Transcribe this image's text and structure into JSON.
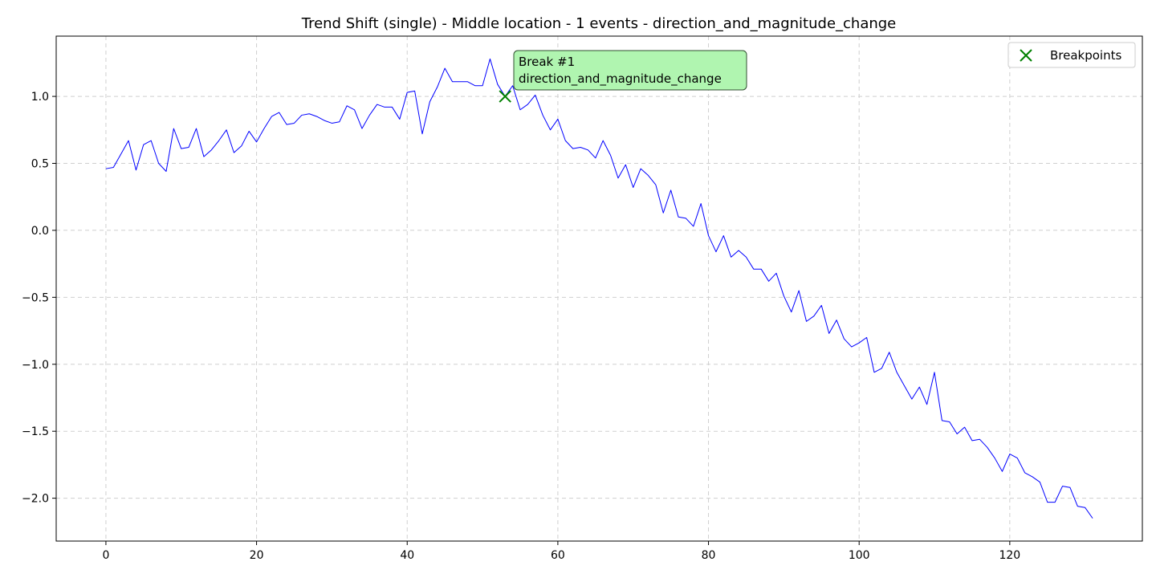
{
  "chart_data": {
    "type": "line",
    "title": "Trend Shift (single) - Middle location - 1 events - direction_and_magnitude_change",
    "xlabel": "",
    "ylabel": "",
    "xlim": [
      -6.6,
      137.6
    ],
    "ylim": [
      -2.32,
      1.45
    ],
    "xticks": [
      0,
      20,
      40,
      60,
      80,
      100,
      120
    ],
    "xtick_labels": [
      "0",
      "20",
      "40",
      "60",
      "80",
      "100",
      "120"
    ],
    "yticks": [
      1.0,
      0.5,
      0.0,
      -0.5,
      -1.0,
      -1.5,
      -2.0
    ],
    "ytick_labels": [
      "1.0",
      "0.5",
      "0.0",
      "−0.5",
      "−1.0",
      "−1.5",
      "−2.0"
    ],
    "grid": true,
    "legend_position": "top-right",
    "series": [
      {
        "color": "#0000ff",
        "x": [
          0,
          1,
          2,
          3,
          4,
          5,
          6,
          7,
          8,
          9,
          10,
          11,
          12,
          13,
          14,
          15,
          16,
          17,
          18,
          19,
          20,
          21,
          22,
          23,
          24,
          25,
          26,
          27,
          28,
          29,
          30,
          31,
          32,
          33,
          34,
          35,
          36,
          37,
          38,
          39,
          40,
          41,
          42,
          43,
          44,
          45,
          46,
          47,
          48,
          49,
          50,
          51,
          52,
          53,
          54,
          55,
          56,
          57,
          58,
          59,
          60,
          61,
          62,
          63,
          64,
          65,
          66,
          67,
          68,
          69,
          70,
          71,
          72,
          73,
          74,
          75,
          76,
          77,
          78,
          79,
          80,
          81,
          82,
          83,
          84,
          85,
          86,
          87,
          88,
          89,
          90,
          91,
          92,
          93,
          94,
          95,
          96,
          97,
          98,
          99,
          100,
          101,
          102,
          103,
          104,
          105,
          106,
          107,
          108,
          109,
          110,
          111,
          112,
          113,
          114,
          115,
          116,
          117,
          118,
          119,
          120,
          121,
          122,
          123,
          124,
          125,
          126,
          127,
          128,
          129,
          130,
          131
        ],
        "values": [
          0.46,
          0.47,
          0.57,
          0.67,
          0.45,
          0.64,
          0.67,
          0.5,
          0.44,
          0.76,
          0.61,
          0.62,
          0.76,
          0.55,
          0.6,
          0.67,
          0.75,
          0.58,
          0.63,
          0.74,
          0.66,
          0.76,
          0.85,
          0.88,
          0.79,
          0.8,
          0.86,
          0.87,
          0.85,
          0.82,
          0.8,
          0.81,
          0.93,
          0.9,
          0.76,
          0.86,
          0.94,
          0.92,
          0.92,
          0.83,
          1.03,
          1.04,
          0.72,
          0.96,
          1.07,
          1.21,
          1.11,
          1.11,
          1.11,
          1.08,
          1.08,
          1.28,
          1.09,
          1.0,
          1.08,
          0.9,
          0.94,
          1.01,
          0.86,
          0.75,
          0.83,
          0.67,
          0.61,
          0.62,
          0.6,
          0.54,
          0.67,
          0.56,
          0.39,
          0.49,
          0.32,
          0.46,
          0.41,
          0.34,
          0.13,
          0.3,
          0.1,
          0.09,
          0.03,
          0.2,
          -0.04,
          -0.16,
          -0.04,
          -0.2,
          -0.15,
          -0.2,
          -0.29,
          -0.29,
          -0.38,
          -0.32,
          -0.49,
          -0.61,
          -0.45,
          -0.68,
          -0.64,
          -0.56,
          -0.77,
          -0.67,
          -0.81,
          -0.87,
          -0.84,
          -0.8,
          -1.06,
          -1.03,
          -0.91,
          -1.06,
          -1.16,
          -1.26,
          -1.17,
          -1.3,
          -1.06,
          -1.42,
          -1.43,
          -1.52,
          -1.47,
          -1.57,
          -1.56,
          -1.62,
          -1.7,
          -1.8,
          -1.67,
          -1.7,
          -1.81,
          -1.84,
          -1.88,
          -2.03,
          -2.03,
          -1.91,
          -1.92,
          -2.06,
          -2.07,
          -2.15
        ]
      }
    ],
    "breakpoints": [
      {
        "x": 53,
        "y": 1.0,
        "color": "#008000"
      }
    ],
    "annotation": {
      "line1": "Break #1",
      "line2": "direction_and_magnitude_change",
      "bg_color": "#b0f5b0",
      "border_color": "#2f4f2f"
    },
    "legend": {
      "label": "Breakpoints",
      "marker_color": "#008000"
    }
  }
}
